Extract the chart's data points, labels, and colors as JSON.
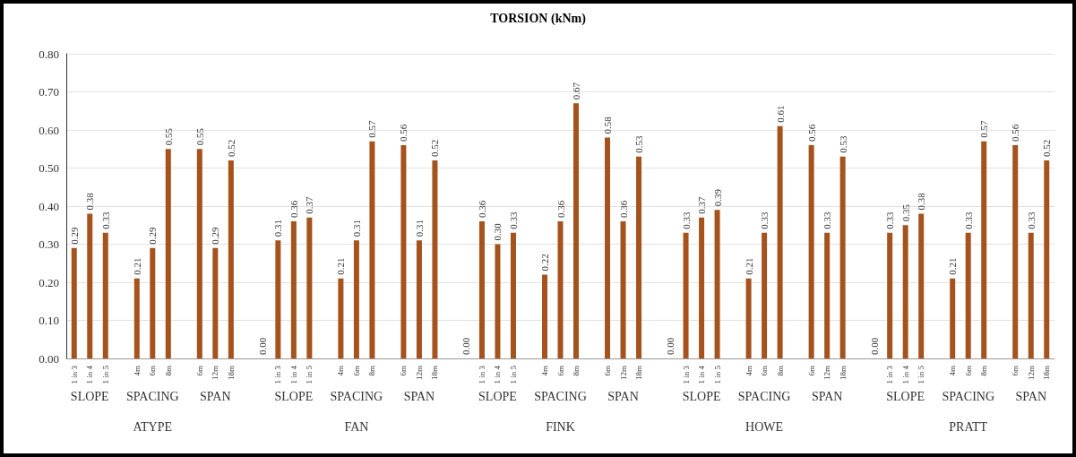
{
  "chart_data": {
    "type": "bar",
    "title": "TORSION (kNm)",
    "categories": [
      "1 in 3",
      "1 in 4",
      "1 in 5",
      null,
      "4m",
      "6m",
      "8m",
      null,
      "6m",
      "12m",
      "18m",
      null,
      null,
      "1 in 3",
      "1 in 4",
      "1 in 5",
      null,
      "4m",
      "6m",
      "8m",
      null,
      "6m",
      "12m",
      "18m",
      null,
      null,
      "1 in 3",
      "1 in 4",
      "1 in 5",
      null,
      "4m",
      "6m",
      "8m",
      null,
      "6m",
      "12m",
      "18m",
      null,
      null,
      "1 in 3",
      "1 in 4",
      "1 in 5",
      null,
      "4m",
      "6m",
      "8m",
      null,
      "6m",
      "12m",
      "18m",
      null,
      null,
      "1 in 3",
      "1 in 4",
      "1 in 5",
      null,
      "4m",
      "6m",
      "8m",
      null,
      "6m",
      "12m",
      "18m"
    ],
    "values": [
      0.29,
      0.38,
      0.33,
      null,
      0.21,
      0.29,
      0.55,
      null,
      0.55,
      0.29,
      0.52,
      null,
      0,
      0.31,
      0.36,
      0.37,
      null,
      0.21,
      0.31,
      0.57,
      null,
      0.56,
      0.31,
      0.52,
      null,
      0,
      0.36,
      0.3,
      0.33,
      null,
      0.22,
      0.36,
      0.67,
      null,
      0.58,
      0.36,
      0.53,
      null,
      0,
      0.33,
      0.37,
      0.39,
      null,
      0.21,
      0.33,
      0.61,
      null,
      0.56,
      0.33,
      0.53,
      null,
      0,
      0.33,
      0.35,
      0.38,
      null,
      0.21,
      0.33,
      0.57,
      null,
      0.56,
      0.33,
      0.52
    ],
    "value_labels": [
      "0.29",
      "0.38",
      "0.33",
      null,
      "0.21",
      "0.29",
      "0.55",
      null,
      "0.55",
      "0.29",
      "0.52",
      null,
      "0.00",
      "0.31",
      "0.36",
      "0.37",
      null,
      "0.21",
      "0.31",
      "0.57",
      null,
      "0.56",
      "0.31",
      "0.52",
      null,
      "0.00",
      "0.36",
      "0.30",
      "0.33",
      null,
      "0.22",
      "0.36",
      "0.67",
      null,
      "0.58",
      "0.36",
      "0.53",
      null,
      "0.00",
      "0.33",
      "0.37",
      "0.39",
      null,
      "0.21",
      "0.33",
      "0.61",
      null,
      "0.56",
      "0.33",
      "0.53",
      null,
      "0.00",
      "0.33",
      "0.35",
      "0.38",
      null,
      "0.21",
      "0.33",
      "0.57",
      null,
      "0.56",
      "0.33",
      "0.52"
    ],
    "color": "#a5521c",
    "ylim": [
      0,
      0.8
    ],
    "yticks": [
      {
        "value": 0,
        "label": "0.00"
      },
      {
        "value": 0.1,
        "label": "0.10"
      },
      {
        "value": 0.2,
        "label": "0.20"
      },
      {
        "value": 0.3,
        "label": "0.30"
      },
      {
        "value": 0.4,
        "label": "0.40"
      },
      {
        "value": 0.5,
        "label": "0.50"
      },
      {
        "value": 0.6,
        "label": "0.60"
      },
      {
        "value": 0.7,
        "label": "0.70"
      },
      {
        "value": 0.8,
        "label": "0.80"
      }
    ],
    "grid": "y",
    "annotations": [
      "SLOPE",
      "SPACING",
      "SPAN",
      "ATYPE",
      "SLOPE",
      "SPACING",
      "SPAN",
      "FAN",
      "SLOPE",
      "SPACING",
      "SPAN",
      "FINK",
      "SLOPE",
      "SPACING",
      "SPAN",
      "HOWE",
      "SLOPE",
      "SPACING",
      "SPAN",
      "PRATT"
    ]
  }
}
